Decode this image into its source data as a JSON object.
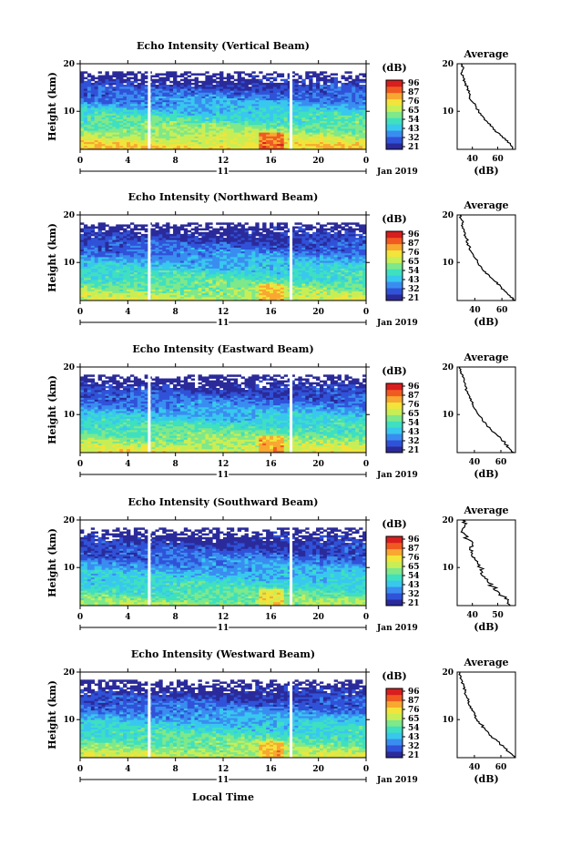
{
  "figure": {
    "xlabel": "Local Time",
    "date_label": "Jan 2019",
    "day_label": "11",
    "x_ticks": [
      "0",
      "4",
      "8",
      "12",
      "16",
      "20",
      "0"
    ],
    "y_ticks": [
      "20",
      "10"
    ],
    "ylabel": "Height (km)",
    "colorbar_unit": "(dB)",
    "avg_title": "Average",
    "avg_xlabel": "(dB)",
    "colormap": [
      "#2a2a9a",
      "#3052d8",
      "#3a8df0",
      "#38c8ee",
      "#3ee0c0",
      "#7ee88a",
      "#c8ee56",
      "#f2e43a",
      "#f8a830",
      "#f05a22",
      "#d81e1e"
    ]
  },
  "chart_data": [
    {
      "type": "heatmap",
      "title": "Echo Intensity (Vertical Beam)",
      "x_range_hours": [
        0,
        24
      ],
      "y_range_km": [
        2,
        20
      ],
      "colorbar_ticks": [
        "96",
        "87",
        "76",
        "65",
        "54",
        "43",
        "32",
        "21"
      ],
      "gaps_hours": [
        5.8,
        17.7
      ],
      "avg_profile": {
        "x_ticks": [
          "40",
          "60"
        ],
        "x_range": [
          28,
          74
        ],
        "height_km": [
          2,
          3,
          4,
          5,
          6,
          7,
          8,
          9,
          10,
          11,
          12,
          13,
          14,
          15,
          16,
          17,
          18,
          19,
          20
        ],
        "db": [
          72,
          70,
          66,
          62,
          58,
          54,
          51,
          48,
          45,
          43,
          40,
          38,
          37,
          36,
          34,
          33,
          31,
          33,
          31
        ]
      }
    },
    {
      "type": "heatmap",
      "title": "Echo Intensity (Northward Beam)",
      "x_range_hours": [
        0,
        24
      ],
      "y_range_km": [
        2,
        20
      ],
      "colorbar_ticks": [
        "96",
        "87",
        "76",
        "65",
        "54",
        "43",
        "32",
        "21"
      ],
      "gaps_hours": [
        5.8,
        17.7
      ],
      "avg_profile": {
        "x_ticks": [
          "40",
          "60"
        ],
        "x_range": [
          27,
          70
        ],
        "height_km": [
          2,
          3,
          4,
          5,
          6,
          7,
          8,
          9,
          10,
          11,
          12,
          13,
          14,
          15,
          16,
          17,
          18,
          19,
          20
        ],
        "db": [
          70,
          66,
          62,
          59,
          55,
          51,
          48,
          45,
          42,
          40,
          38,
          36,
          35,
          34,
          33,
          32,
          31,
          30,
          29
        ]
      }
    },
    {
      "type": "heatmap",
      "title": "Echo Intensity (Eastward Beam)",
      "x_range_hours": [
        0,
        24
      ],
      "y_range_km": [
        2,
        20
      ],
      "colorbar_ticks": [
        "96",
        "87",
        "76",
        "65",
        "54",
        "43",
        "32",
        "21"
      ],
      "gaps_hours": [
        5.8,
        17.7
      ],
      "avg_profile": {
        "x_ticks": [
          "40",
          "60"
        ],
        "x_range": [
          27,
          71
        ],
        "height_km": [
          2,
          3,
          4,
          5,
          6,
          7,
          8,
          9,
          10,
          11,
          12,
          13,
          14,
          15,
          16,
          17,
          18,
          19,
          20
        ],
        "db": [
          70,
          66,
          63,
          60,
          56,
          52,
          49,
          46,
          43,
          41,
          39,
          37,
          36,
          34,
          33,
          32,
          31,
          30,
          29
        ]
      }
    },
    {
      "type": "heatmap",
      "title": "Echo Intensity (Southward Beam)",
      "x_range_hours": [
        0,
        24
      ],
      "y_range_km": [
        2,
        20
      ],
      "colorbar_ticks": [
        "96",
        "87",
        "76",
        "65",
        "54",
        "43",
        "32",
        "21"
      ],
      "gaps_hours": [
        5.8,
        17.7
      ],
      "avg_profile": {
        "x_ticks": [
          "40",
          "50"
        ],
        "x_range": [
          34,
          57
        ],
        "height_km": [
          2,
          3,
          4,
          5,
          6,
          7,
          8,
          9,
          10,
          11,
          12,
          13,
          14,
          15,
          16,
          17,
          18,
          19,
          20
        ],
        "db": [
          55,
          54,
          52,
          50,
          48,
          46,
          45,
          44,
          43,
          42,
          41,
          40,
          39,
          40,
          38,
          37,
          36,
          37,
          36
        ]
      }
    },
    {
      "type": "heatmap",
      "title": "Echo Intensity (Westward Beam)",
      "x_range_hours": [
        0,
        24
      ],
      "y_range_km": [
        2,
        20
      ],
      "colorbar_ticks": [
        "96",
        "87",
        "76",
        "65",
        "54",
        "43",
        "32",
        "21"
      ],
      "gaps_hours": [
        5.8,
        17.7
      ],
      "avg_profile": {
        "x_ticks": [
          "40",
          "60"
        ],
        "x_range": [
          27,
          71
        ],
        "height_km": [
          2,
          3,
          4,
          5,
          6,
          7,
          8,
          9,
          10,
          11,
          12,
          13,
          14,
          15,
          16,
          17,
          18,
          19,
          20
        ],
        "db": [
          70,
          67,
          63,
          59,
          55,
          51,
          48,
          45,
          42,
          40,
          38,
          36,
          35,
          34,
          33,
          32,
          31,
          30,
          29
        ]
      }
    }
  ]
}
